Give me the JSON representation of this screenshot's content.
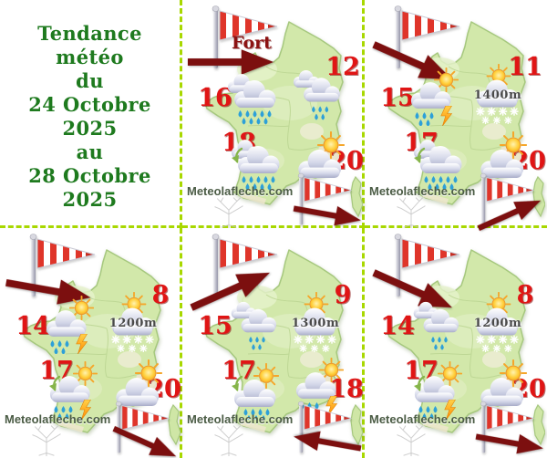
{
  "title": {
    "lines": [
      "Tendance météo",
      "du",
      "24 Octobre 2025",
      "au",
      "28 Octobre 2025"
    ]
  },
  "colors": {
    "title_green": "#1e7a1e",
    "temperature_red": "#e01515",
    "arrow_dark_red": "#7c0f0f",
    "dashed_border": "#a8d800",
    "map_green": "#d2e8aa",
    "rain_blue": "#2da0d8",
    "watermark_green": "#4b5c45"
  },
  "icon_legend": {
    "heavy-rain": "grey clouds with heavy blue raindrops",
    "light-rain": "grey clouds with light blue raindrops",
    "thunderstorm": "sun, cloud, raindrops and orange lightning bolt",
    "sun-rain": "sun behind cloud with raindrops",
    "snow": "sun behind cloud with white snowflakes",
    "sun-cloud": "sun behind cloud",
    "windsock": "red and white striped windsock",
    "wind-arrow": "dark red wind direction arrow"
  },
  "maps": [
    {
      "wind_label": "Fort",
      "top_arrow": "right",
      "bottom_arrow": "right-down",
      "temps": {
        "nw": "16",
        "ne": "12",
        "sw": "18",
        "se": "20"
      },
      "icons": {
        "nw": "heavy-rain",
        "ne": "light-rain",
        "sw": "heavy-rain",
        "se": "sun-cloud"
      },
      "snow_altitude": "",
      "watermark": "Meteolafleche.com"
    },
    {
      "wind_label": "",
      "top_arrow": "down-right",
      "bottom_arrow": "up-right",
      "temps": {
        "nw": "15",
        "ne": "11",
        "sw": "17",
        "se": "20"
      },
      "icons": {
        "nw": "thunderstorm",
        "ne": "snow",
        "sw": "heavy-rain",
        "se": "sun-cloud"
      },
      "snow_altitude": "1400m",
      "watermark": "Meteolafleche.com"
    },
    {
      "wind_label": "",
      "top_arrow": "right-down",
      "bottom_arrow": "down-right",
      "temps": {
        "nw": "14",
        "ne": "8",
        "sw": "17",
        "se": "20"
      },
      "icons": {
        "nw": "thunderstorm",
        "ne": "snow",
        "sw": "thunderstorm",
        "se": "sun-cloud"
      },
      "snow_altitude": "1200m",
      "watermark": "Meteolafleche.com"
    },
    {
      "wind_label": "",
      "top_arrow": "up-right",
      "bottom_arrow": "left",
      "temps": {
        "nw": "15",
        "ne": "9",
        "sw": "17",
        "se": "18"
      },
      "icons": {
        "nw": "light-rain",
        "ne": "snow",
        "sw": "sun-rain",
        "se": "thunderstorm"
      },
      "snow_altitude": "1300m",
      "watermark": "Meteolafleche.com"
    },
    {
      "wind_label": "",
      "top_arrow": "down-right",
      "bottom_arrow": "right-down",
      "temps": {
        "nw": "14",
        "ne": "8",
        "sw": "17",
        "se": "20"
      },
      "icons": {
        "nw": "light-rain",
        "ne": "snow",
        "sw": "thunderstorm",
        "se": "sun-cloud"
      },
      "snow_altitude": "1200m",
      "watermark": "Meteolafleche.com"
    }
  ]
}
